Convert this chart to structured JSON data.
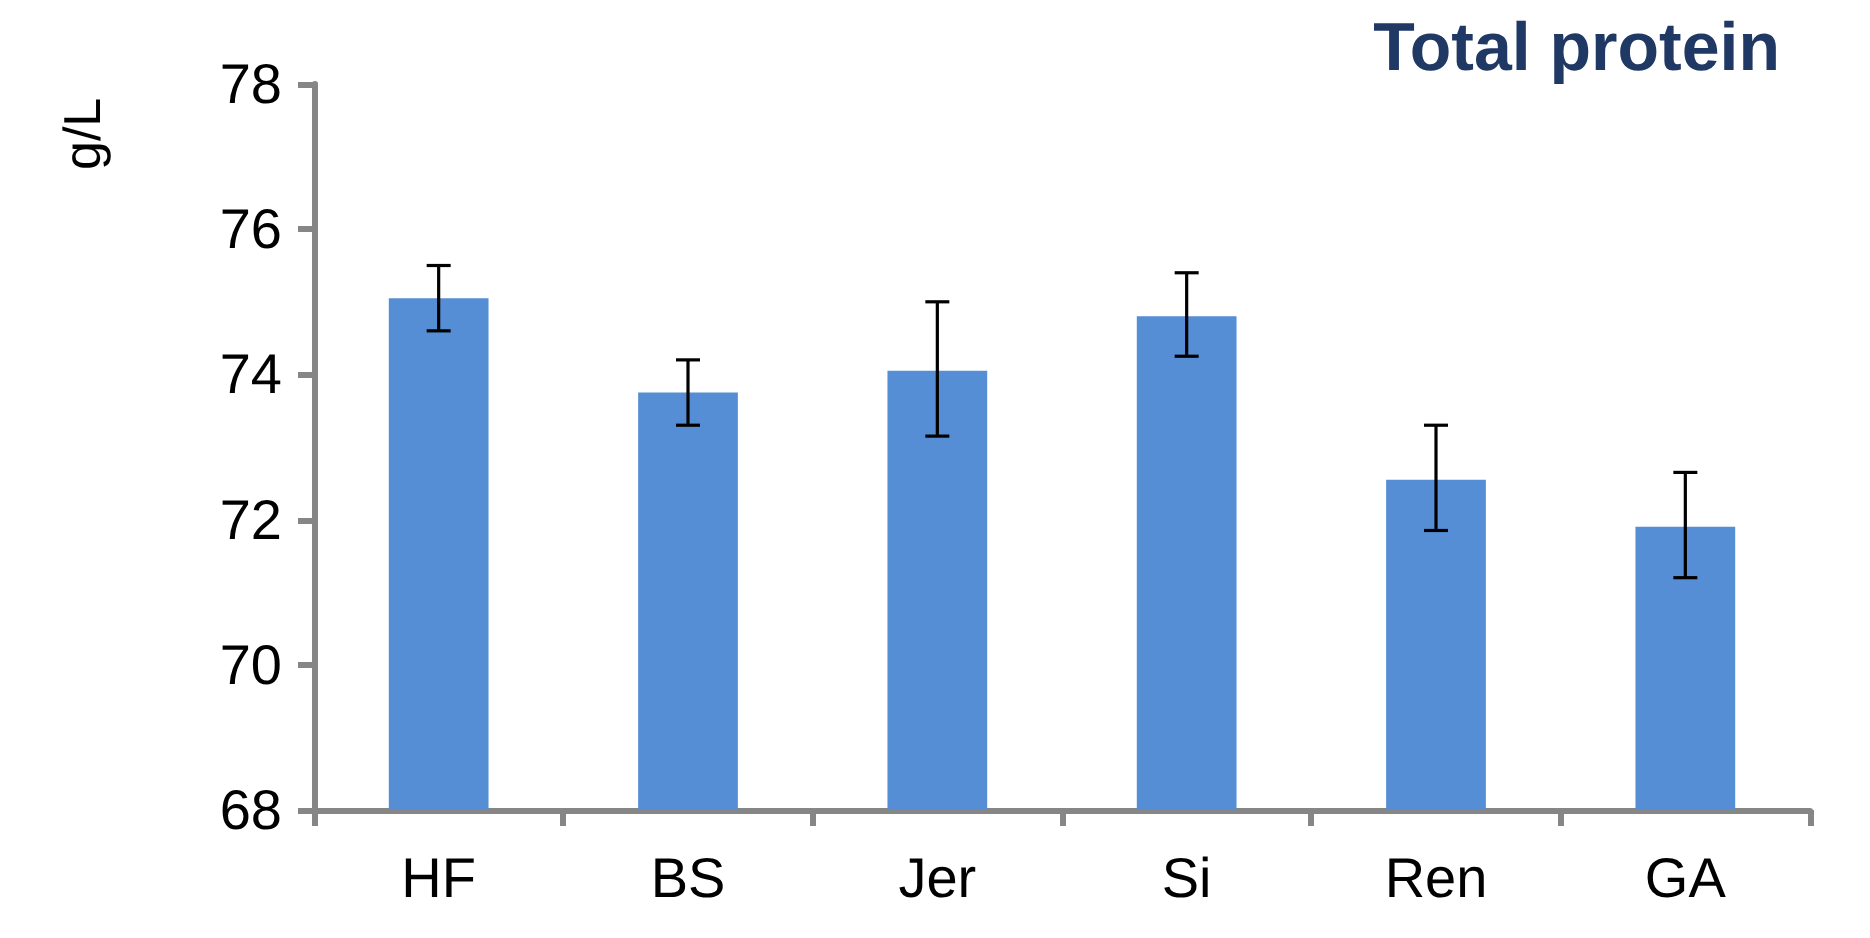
{
  "chart_data": {
    "type": "bar",
    "title": "Total protein",
    "ylabel": "g/L",
    "categories": [
      "HF",
      "BS",
      "Jer",
      "Si",
      "Ren",
      "GA"
    ],
    "values": [
      75.05,
      73.75,
      74.05,
      74.8,
      72.55,
      71.9
    ],
    "errors": [
      [
        74.6,
        75.5
      ],
      [
        73.3,
        74.2
      ],
      [
        73.15,
        75.0
      ],
      [
        74.25,
        75.4
      ],
      [
        71.85,
        73.3
      ],
      [
        71.2,
        72.65
      ]
    ],
    "color": "#558ed5",
    "ylim": [
      68,
      78
    ],
    "yticks": [
      68,
      70,
      72,
      74,
      76,
      78
    ],
    "grid": false
  }
}
